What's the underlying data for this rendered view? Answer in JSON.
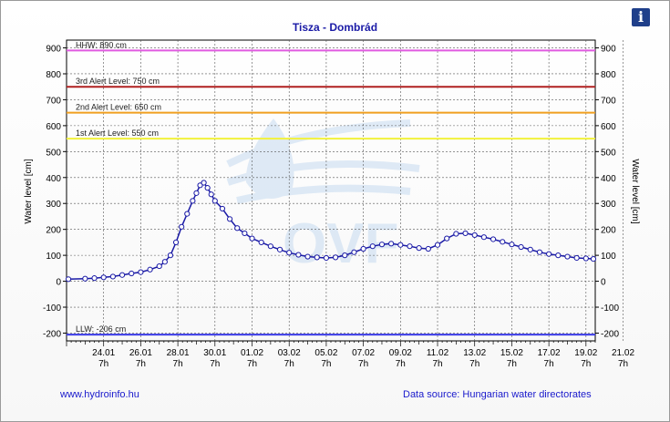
{
  "chart_data": {
    "type": "line",
    "title": "Tisza - Dombrád",
    "ylabel_left": "Water level [cm]",
    "ylabel_right": "Water level [cm]",
    "ylim": [
      -230,
      930
    ],
    "y_ticks": [
      900,
      800,
      700,
      600,
      500,
      400,
      300,
      200,
      100,
      0,
      -100,
      -200
    ],
    "x_ticks": [
      {
        "date": "24.01",
        "hour": "7h"
      },
      {
        "date": "26.01",
        "hour": "7h"
      },
      {
        "date": "28.01",
        "hour": "7h"
      },
      {
        "date": "30.01",
        "hour": "7h"
      },
      {
        "date": "01.02",
        "hour": "7h"
      },
      {
        "date": "03.02",
        "hour": "7h"
      },
      {
        "date": "05.02",
        "hour": "7h"
      },
      {
        "date": "07.02",
        "hour": "7h"
      },
      {
        "date": "09.02",
        "hour": "7h"
      },
      {
        "date": "11.02",
        "hour": "7h"
      },
      {
        "date": "13.02",
        "hour": "7h"
      },
      {
        "date": "15.02",
        "hour": "7h"
      },
      {
        "date": "17.02",
        "hour": "7h"
      },
      {
        "date": "19.02",
        "hour": "7h"
      },
      {
        "date": "21.02",
        "hour": "7h"
      }
    ],
    "grid": true,
    "reference_lines": [
      {
        "label": "HHW: 890 cm",
        "value": 890,
        "color": "#e05ae0"
      },
      {
        "label": "3rd Alert Level: 750 cm",
        "value": 750,
        "color": "#b02020"
      },
      {
        "label": "2nd Alert Level: 650 cm",
        "value": 650,
        "color": "#f0a020"
      },
      {
        "label": "1st Alert Level: 550 cm",
        "value": 550,
        "color": "#f2f23a"
      },
      {
        "label": "LLW: -206 cm",
        "value": -206,
        "color": "#3a3ae6"
      }
    ],
    "series": [
      {
        "color": "#1a1aa6",
        "points": [
          [
            -1.9,
            8
          ],
          [
            -1.0,
            10
          ],
          [
            -0.5,
            12
          ],
          [
            0.0,
            15
          ],
          [
            0.5,
            18
          ],
          [
            1.0,
            24
          ],
          [
            1.5,
            30
          ],
          [
            2.0,
            35
          ],
          [
            2.5,
            45
          ],
          [
            3.0,
            58
          ],
          [
            3.3,
            75
          ],
          [
            3.6,
            100
          ],
          [
            3.9,
            150
          ],
          [
            4.2,
            210
          ],
          [
            4.5,
            260
          ],
          [
            4.8,
            310
          ],
          [
            5.0,
            340
          ],
          [
            5.2,
            370
          ],
          [
            5.4,
            380
          ],
          [
            5.6,
            360
          ],
          [
            5.8,
            335
          ],
          [
            6.0,
            310
          ],
          [
            6.4,
            280
          ],
          [
            6.8,
            240
          ],
          [
            7.2,
            205
          ],
          [
            7.6,
            185
          ],
          [
            8.0,
            165
          ],
          [
            8.5,
            150
          ],
          [
            9.0,
            135
          ],
          [
            9.5,
            122
          ],
          [
            10.0,
            110
          ],
          [
            10.5,
            102
          ],
          [
            11.0,
            95
          ],
          [
            11.5,
            92
          ],
          [
            12.0,
            90
          ],
          [
            12.5,
            92
          ],
          [
            13.0,
            100
          ],
          [
            13.5,
            112
          ],
          [
            14.0,
            125
          ],
          [
            14.5,
            135
          ],
          [
            15.0,
            142
          ],
          [
            15.5,
            145
          ],
          [
            16.0,
            140
          ],
          [
            16.5,
            135
          ],
          [
            17.0,
            128
          ],
          [
            17.5,
            125
          ],
          [
            18.0,
            140
          ],
          [
            18.5,
            165
          ],
          [
            19.0,
            183
          ],
          [
            19.5,
            185
          ],
          [
            20.0,
            178
          ],
          [
            20.5,
            170
          ],
          [
            21.0,
            162
          ],
          [
            21.5,
            152
          ],
          [
            22.0,
            142
          ],
          [
            22.5,
            132
          ],
          [
            23.0,
            122
          ],
          [
            23.5,
            112
          ],
          [
            24.0,
            105
          ],
          [
            24.5,
            100
          ],
          [
            25.0,
            95
          ],
          [
            25.5,
            90
          ],
          [
            26.0,
            88
          ],
          [
            26.4,
            86
          ]
        ]
      }
    ]
  },
  "footer": {
    "left": "www.hydroinfo.hu",
    "right": "Data source: Hungarian water directorates"
  },
  "info_button": {
    "glyph": "i"
  }
}
